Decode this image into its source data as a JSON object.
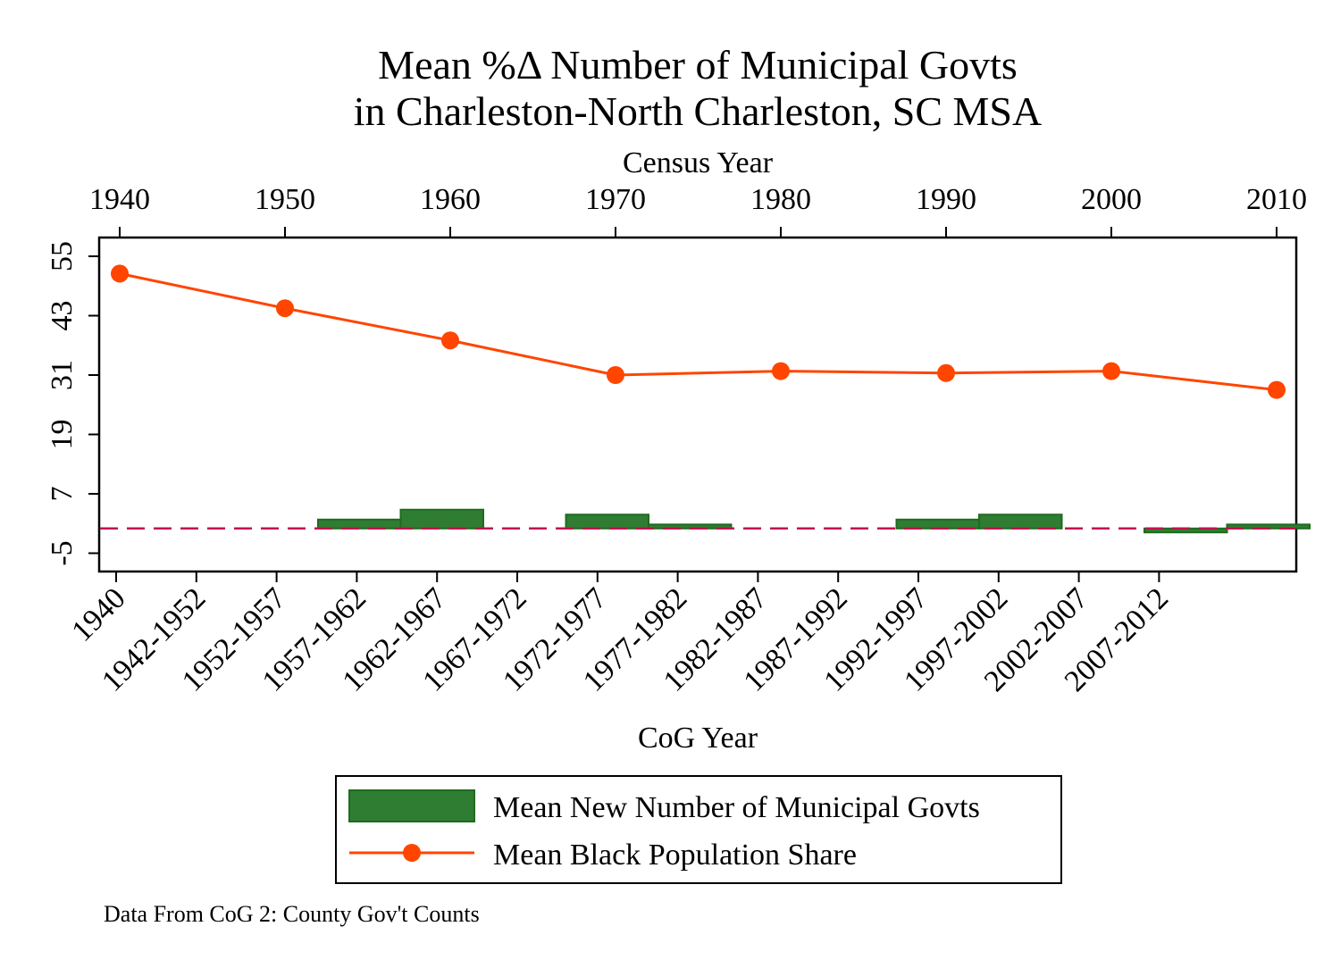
{
  "chart_data": {
    "type": "line",
    "title_lines": [
      "Mean %Δ Number of Municipal Govts",
      "in Charleston-North Charleston, SC MSA"
    ],
    "top_axis": {
      "label": "Census Year",
      "ticks": [
        "1940",
        "1950",
        "1960",
        "1970",
        "1980",
        "1990",
        "2000",
        "2010"
      ],
      "range": [
        1940,
        2010
      ]
    },
    "bottom_axis": {
      "label": "CoG Year",
      "ticks": [
        "1940",
        "1942-1952",
        "1952-1957",
        "1957-1962",
        "1962-1967",
        "1967-1972",
        "1972-1977",
        "1977-1982",
        "1982-1987",
        "1987-1992",
        "1992-1997",
        "1997-2002",
        "2002-2007",
        "2007-2012"
      ]
    },
    "y_axis": {
      "ticks": [
        -5,
        7,
        19,
        31,
        43,
        55
      ],
      "ticks_text": [
        "-5",
        "7",
        "19",
        "31",
        "43",
        "55"
      ],
      "ylim": [
        -9,
        59
      ]
    },
    "reference_line": {
      "y": 0,
      "style": "dashed",
      "color": "#c0144c"
    },
    "series": [
      {
        "name": "Mean Black Population Share",
        "kind": "line",
        "color": "#ff4500",
        "x": [
          1940,
          1950,
          1960,
          1970,
          1980,
          1990,
          2000,
          2010
        ],
        "y": [
          51.5,
          44.5,
          38.0,
          31.0,
          31.8,
          31.4,
          31.8,
          28.0
        ]
      },
      {
        "name": "Mean New Number of Municipal Govts",
        "kind": "bar",
        "color": "#2e7d32",
        "edge_color": "#1f6b1f",
        "bars": [
          {
            "from": 1952,
            "to": 1957,
            "value": 1.8
          },
          {
            "from": 1957,
            "to": 1962,
            "value": 3.8
          },
          {
            "from": 1967,
            "to": 1972,
            "value": 2.8
          },
          {
            "from": 1972,
            "to": 1977,
            "value": 0.8
          },
          {
            "from": 1987,
            "to": 1992,
            "value": 1.8
          },
          {
            "from": 1992,
            "to": 1997,
            "value": 2.8
          },
          {
            "from": 2002,
            "to": 2007,
            "value": -0.8
          },
          {
            "from": 2007,
            "to": 2012,
            "value": 0.8
          }
        ]
      }
    ],
    "legend": {
      "placement": "bottom",
      "entries": [
        "Mean New Number of Municipal Govts",
        "Mean Black Population Share"
      ]
    },
    "note": "Data From CoG 2: County Gov't Counts"
  }
}
